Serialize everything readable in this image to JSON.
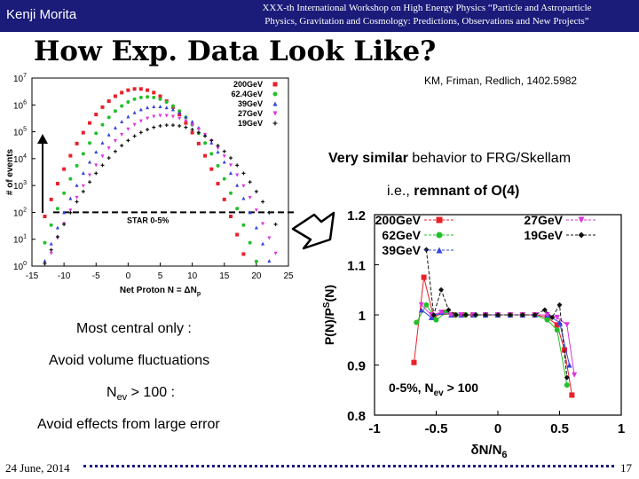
{
  "header": {
    "author": "Kenji Morita",
    "workshop_line1": "XXX-th International Workshop on High Energy Physics “Particle and Astroparticle",
    "workshop_line2": "Physics, Gravitation and Cosmology: Predictions, Observations and New Projects”"
  },
  "slide": {
    "title": "How Exp. Data Look Like?",
    "reference": "KM, Friman, Redlich, 1402.5982",
    "similar_bold": "Very similar",
    "similar_rest": " behavior to FRG/Skellam",
    "ie_prefix": "i.e., ",
    "ie_bold": "remnant of O(4)",
    "central_only": "Most central only :",
    "avoid_volume": "Avoid volume fluctuations",
    "nev_label": "N",
    "nev_sub": "ev",
    "nev_rest": " > 100 :",
    "avoid_error": "Avoid effects from large error"
  },
  "footer": {
    "date": "24 June, 2014",
    "page": "17"
  },
  "colors": {
    "header_bg": "#1b1b7a",
    "header_text": "#ffffff"
  },
  "chart_data": [
    {
      "type": "scatter",
      "xlabel": "Net Proton N = ΔN",
      "xlabel_sub": "p",
      "ylabel": "# of events",
      "log_y": true,
      "xlim": [
        -15,
        25
      ],
      "ylim_exp": [
        0,
        7
      ],
      "x_ticks": [
        "-15",
        "-10",
        "-5",
        "0",
        "5",
        "10",
        "15",
        "20",
        "25"
      ],
      "y_tick_exponents": [
        "0",
        "1",
        "2",
        "3",
        "4",
        "5",
        "6",
        "7"
      ],
      "annotation": "STAR 0-5%",
      "threshold_log10": 2,
      "series": [
        {
          "name": "200GeV",
          "color": "#e8202a",
          "marker": "square",
          "mean": 1.5,
          "sigma": 3.1,
          "peak_log10": 6.6
        },
        {
          "name": "62.4GeV",
          "color": "#22c02a",
          "marker": "circle",
          "mean": 3.0,
          "sigma": 3.2,
          "peak_log10": 6.3
        },
        {
          "name": "39GeV",
          "color": "#3344dd",
          "marker": "triangle",
          "mean": 4.5,
          "sigma": 3.4,
          "peak_log10": 5.95
        },
        {
          "name": "27GeV",
          "color": "#dd33dd",
          "marker": "triangle-down",
          "mean": 5.5,
          "sigma": 3.6,
          "peak_log10": 5.6
        },
        {
          "name": "19GeV",
          "color": "#111111",
          "marker": "plus",
          "mean": 6.5,
          "sigma": 4.0,
          "peak_log10": 5.25
        }
      ]
    },
    {
      "type": "line",
      "xlabel": "δN/N",
      "xlabel_sub": "6",
      "ylabel": "P(N)/P",
      "ylabel_sup": "S",
      "ylabel_rest": "(N)",
      "xlim": [
        -1,
        1
      ],
      "ylim": [
        0.8,
        1.2
      ],
      "x_ticks": [
        "-1",
        "-0.5",
        "0",
        "0.5",
        "1"
      ],
      "y_ticks": [
        "0.8",
        "0.9",
        "1",
        "1.1",
        "1.2"
      ],
      "annotation": "0-5%, N",
      "annotation_sub": "ev",
      "annotation_rest": " > 100",
      "series": [
        {
          "name": "200GeV",
          "color": "#e8202a",
          "marker": "square",
          "x": [
            -0.68,
            -0.6,
            -0.52,
            -0.44,
            -0.36,
            -0.28,
            -0.2,
            -0.1,
            0.0,
            0.1,
            0.2,
            0.3,
            0.4,
            0.48,
            0.54,
            0.6
          ],
          "y": [
            0.905,
            1.075,
            0.995,
            1.005,
            1.0,
            1.0,
            1.0,
            1.0,
            1.0,
            1.0,
            1.0,
            1.0,
            0.995,
            0.98,
            0.93,
            0.84
          ]
        },
        {
          "name": "62GeV",
          "color": "#22c02a",
          "marker": "circle",
          "x": [
            -0.66,
            -0.58,
            -0.5,
            -0.42,
            -0.34,
            -0.26,
            -0.18,
            -0.1,
            0.0,
            0.1,
            0.2,
            0.3,
            0.4,
            0.48,
            0.56
          ],
          "y": [
            0.985,
            1.02,
            0.99,
            1.005,
            1.0,
            1.0,
            1.0,
            1.0,
            1.0,
            1.0,
            1.0,
            1.0,
            0.99,
            0.97,
            0.86
          ]
        },
        {
          "name": "39GeV",
          "color": "#3344dd",
          "marker": "triangle",
          "x": [
            -0.62,
            -0.54,
            -0.46,
            -0.38,
            -0.3,
            -0.2,
            -0.1,
            0.0,
            0.1,
            0.2,
            0.3,
            0.4,
            0.5,
            0.58
          ],
          "y": [
            1.01,
            0.995,
            1.005,
            1.0,
            1.0,
            1.0,
            1.0,
            1.0,
            1.0,
            1.0,
            1.0,
            1.0,
            0.985,
            0.9
          ]
        },
        {
          "name": "27GeV",
          "color": "#dd33dd",
          "marker": "triangle-down",
          "x": [
            -0.62,
            -0.54,
            -0.46,
            -0.38,
            -0.3,
            -0.2,
            -0.1,
            0.0,
            0.1,
            0.2,
            0.3,
            0.4,
            0.48,
            0.56,
            0.62
          ],
          "y": [
            1.02,
            1.0,
            1.005,
            1.0,
            1.0,
            1.0,
            1.0,
            1.0,
            1.0,
            1.0,
            1.0,
            1.0,
            0.995,
            0.98,
            0.88
          ]
        },
        {
          "name": "19GeV",
          "color": "#111111",
          "marker": "diamond",
          "x": [
            -0.58,
            -0.52,
            -0.46,
            -0.4,
            -0.34,
            -0.26,
            -0.18,
            -0.1,
            0.0,
            0.1,
            0.2,
            0.3,
            0.38,
            0.44,
            0.5,
            0.56
          ],
          "y": [
            1.13,
            1.0,
            1.05,
            1.01,
            1.0,
            1.0,
            1.0,
            1.0,
            1.0,
            1.0,
            1.0,
            1.0,
            1.01,
            0.995,
            1.02,
            0.875
          ]
        }
      ]
    }
  ]
}
